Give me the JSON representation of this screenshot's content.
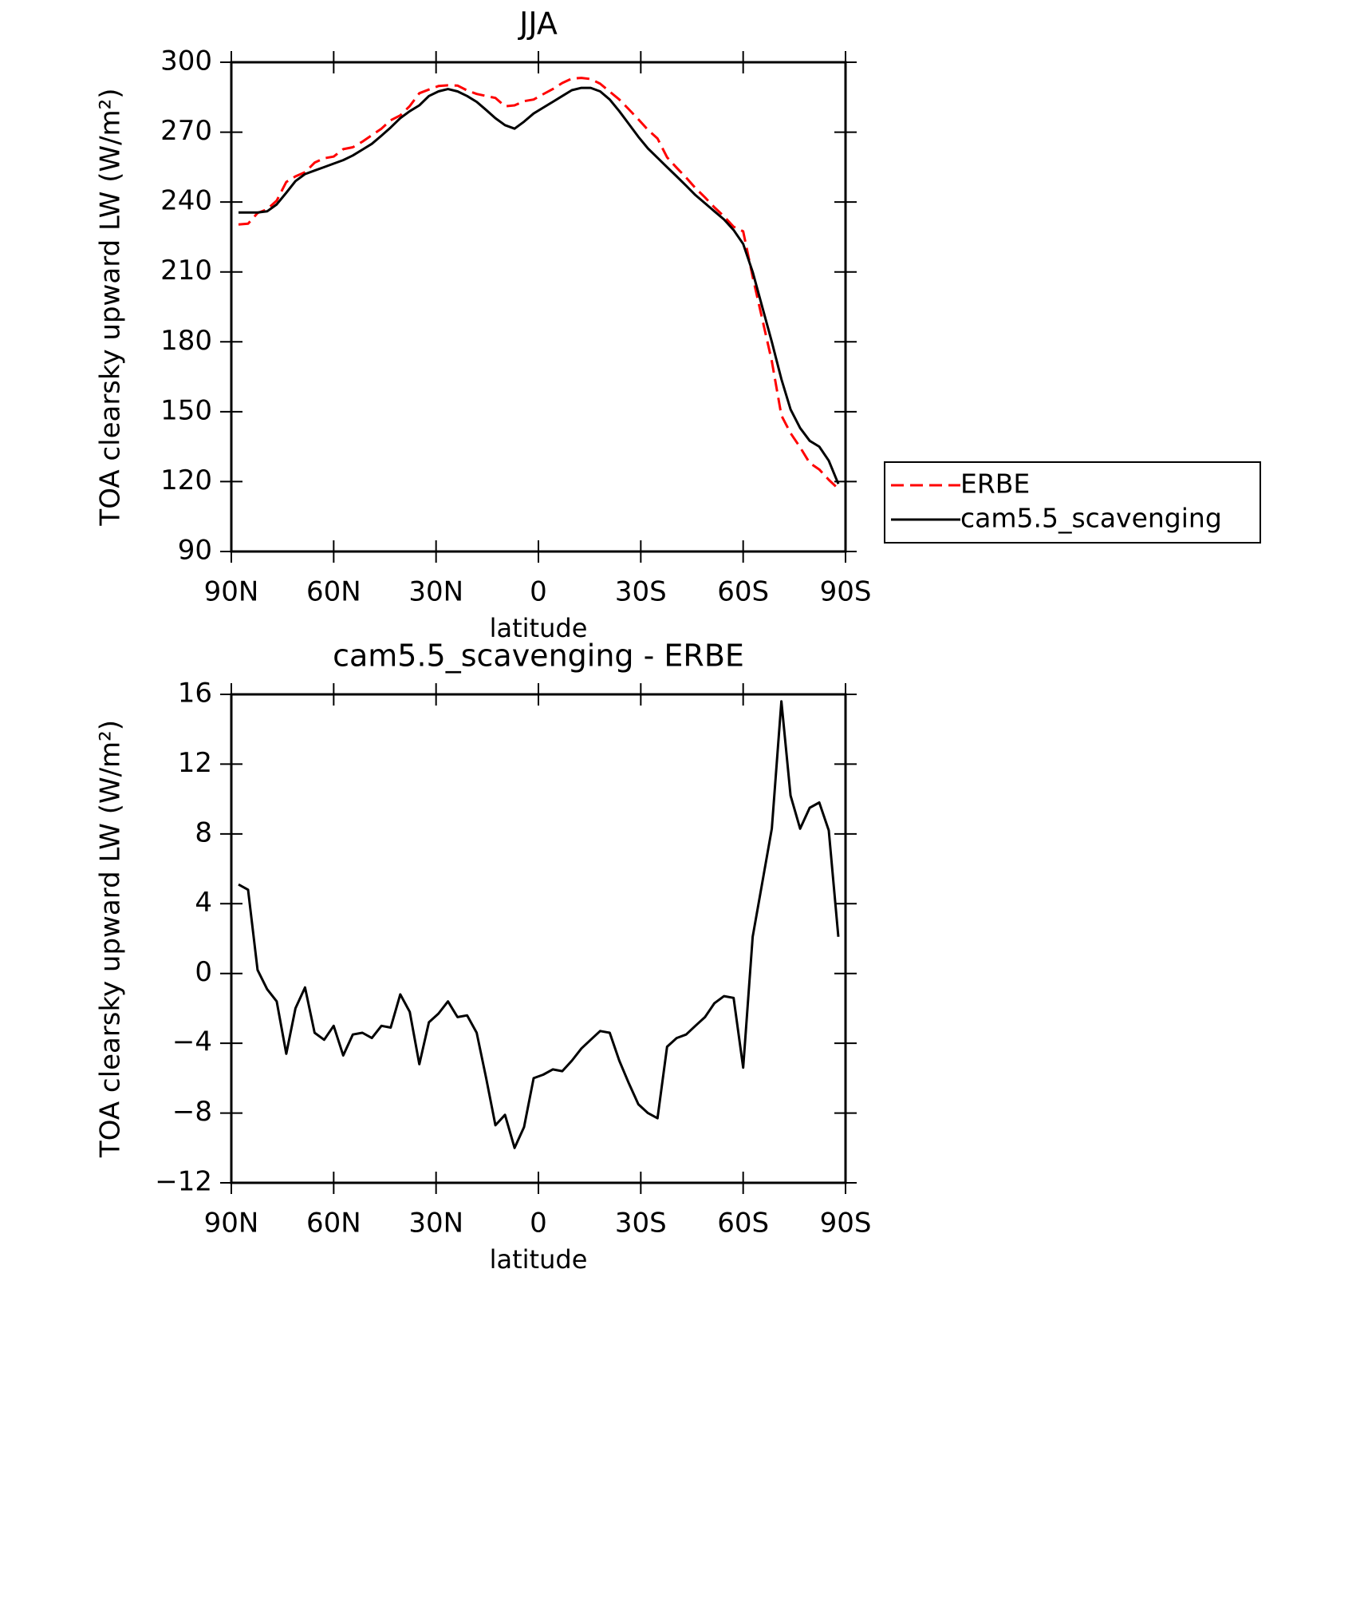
{
  "chart_data": [
    {
      "type": "line",
      "title": "JJA",
      "xlabel": "latitude",
      "ylabel": "TOA clearsky upward LW (W/m²)",
      "xlim": [
        90,
        -90
      ],
      "xticks": [
        {
          "value": 90,
          "label": "90N"
        },
        {
          "value": 60,
          "label": "60N"
        },
        {
          "value": 30,
          "label": "30N"
        },
        0,
        {
          "value": -30,
          "label": "30S"
        },
        {
          "value": -60,
          "label": "60S"
        },
        {
          "value": -90,
          "label": "90S"
        }
      ],
      "ylim": [
        90,
        300
      ],
      "yticks": [
        90,
        120,
        150,
        180,
        210,
        240,
        270,
        300
      ],
      "legend": "right",
      "x": [
        87.9,
        85.1,
        82.3,
        79.5,
        76.7,
        73.9,
        71.2,
        68.4,
        65.6,
        62.8,
        60.0,
        57.2,
        54.4,
        51.6,
        48.8,
        46.0,
        43.3,
        40.5,
        37.7,
        34.9,
        32.1,
        29.3,
        26.5,
        23.7,
        20.9,
        18.1,
        15.3,
        12.6,
        9.8,
        7.0,
        4.2,
        1.4,
        -1.4,
        -4.2,
        -7.0,
        -9.8,
        -12.6,
        -15.3,
        -18.1,
        -20.9,
        -23.7,
        -26.5,
        -29.3,
        -32.1,
        -34.9,
        -37.7,
        -40.5,
        -43.3,
        -46.0,
        -48.8,
        -51.6,
        -54.4,
        -57.2,
        -60.0,
        -62.8,
        -65.6,
        -68.4,
        -71.2,
        -73.9,
        -76.7,
        -79.5,
        -82.3,
        -85.1,
        -87.9
      ],
      "series": [
        {
          "name": "ERBE",
          "color": "#ff0000",
          "dash": true,
          "values": [
            230.4,
            230.7,
            235.3,
            236.9,
            240.6,
            248.6,
            251,
            252.8,
            256.9,
            258.8,
            259.5,
            262.7,
            263.5,
            265.9,
            268.7,
            271.5,
            275.1,
            277.2,
            281.2,
            286.7,
            288.3,
            289.8,
            290.1,
            290,
            287.9,
            286.4,
            285.5,
            284.7,
            281.1,
            281.5,
            283.3,
            284,
            286.3,
            288.5,
            291.1,
            293,
            293.3,
            292.8,
            290.8,
            287.4,
            284,
            279.8,
            275.5,
            271,
            267.3,
            259.2,
            254.7,
            250.5,
            246,
            242,
            237.7,
            233.8,
            229.4,
            227.4,
            207.9,
            189.8,
            171.7,
            148.4,
            140.8,
            134.7,
            128,
            125.2,
            120.8,
            116.9
          ]
        },
        {
          "name": "cam5.5_scavenging",
          "color": "#000000",
          "dash": false,
          "values": [
            235.5,
            235.5,
            235.5,
            236,
            239,
            244,
            249,
            252,
            253.5,
            255,
            256.5,
            258,
            260,
            262.5,
            265,
            268.5,
            272,
            276,
            279,
            281.5,
            285.5,
            287.5,
            288.5,
            287.5,
            285.5,
            283,
            279.5,
            276,
            273,
            271.5,
            274.5,
            278,
            280.5,
            283,
            285.5,
            288,
            289,
            289,
            287.5,
            284,
            279,
            273.5,
            268,
            263,
            259,
            255,
            251,
            247,
            243,
            239.5,
            236,
            232.5,
            228,
            222,
            210,
            195,
            180,
            164,
            151,
            143,
            137.5,
            135,
            129,
            119
          ]
        }
      ]
    },
    {
      "type": "line",
      "title": "cam5.5_scavenging - ERBE",
      "xlabel": "latitude",
      "ylabel": "TOA clearsky upward LW (W/m²)",
      "xlim": [
        90,
        -90
      ],
      "xticks": [
        {
          "value": 90,
          "label": "90N"
        },
        {
          "value": 60,
          "label": "60N"
        },
        {
          "value": 30,
          "label": "30N"
        },
        0,
        {
          "value": -30,
          "label": "30S"
        },
        {
          "value": -60,
          "label": "60S"
        },
        {
          "value": -90,
          "label": "90S"
        }
      ],
      "ylim": [
        -12,
        16
      ],
      "yticks": [
        {
          "value": -12,
          "label": "−12"
        },
        {
          "value": -8,
          "label": "−8"
        },
        {
          "value": -4,
          "label": "−4"
        },
        0,
        4,
        8,
        12,
        16
      ],
      "x": [
        87.9,
        85.1,
        82.3,
        79.5,
        76.7,
        73.9,
        71.2,
        68.4,
        65.6,
        62.8,
        60.0,
        57.2,
        54.4,
        51.6,
        48.8,
        46.0,
        43.3,
        40.5,
        37.7,
        34.9,
        32.1,
        29.3,
        26.5,
        23.7,
        20.9,
        18.1,
        15.3,
        12.6,
        9.8,
        7.0,
        4.2,
        1.4,
        -1.4,
        -4.2,
        -7.0,
        -9.8,
        -12.6,
        -15.3,
        -18.1,
        -20.9,
        -23.7,
        -26.5,
        -29.3,
        -32.1,
        -34.9,
        -37.7,
        -40.5,
        -43.3,
        -46.0,
        -48.8,
        -51.6,
        -54.4,
        -57.2,
        -60.0,
        -62.8,
        -65.6,
        -68.4,
        -71.2,
        -73.9,
        -76.7,
        -79.5,
        -82.3,
        -85.1,
        -87.9
      ],
      "series": [
        {
          "color": "#000000",
          "dash": false,
          "values": [
            5.1,
            4.8,
            0.2,
            -0.9,
            -1.6,
            -4.6,
            -2.0,
            -0.8,
            -3.4,
            -3.8,
            -3.0,
            -4.7,
            -3.5,
            -3.4,
            -3.7,
            -3.0,
            -3.1,
            -1.2,
            -2.2,
            -5.2,
            -2.8,
            -2.3,
            -1.6,
            -2.5,
            -2.4,
            -3.4,
            -6.0,
            -8.7,
            -8.1,
            -10.0,
            -8.8,
            -6.0,
            -5.8,
            -5.5,
            -5.6,
            -5.0,
            -4.3,
            -3.8,
            -3.3,
            -3.4,
            -5.0,
            -6.3,
            -7.5,
            -8.0,
            -8.3,
            -4.2,
            -3.7,
            -3.5,
            -3.0,
            -2.5,
            -1.7,
            -1.3,
            -1.4,
            -5.4,
            2.1,
            5.2,
            8.3,
            15.6,
            10.2,
            8.3,
            9.5,
            9.8,
            8.2,
            2.1
          ]
        }
      ]
    }
  ]
}
